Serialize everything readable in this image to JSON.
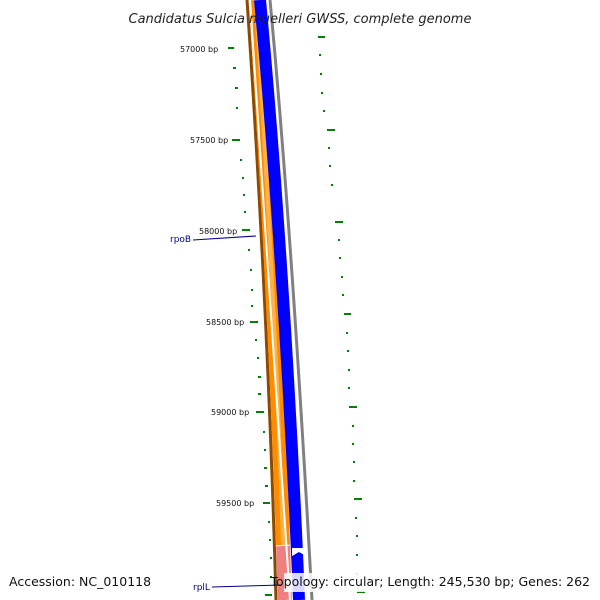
{
  "title": "Candidatus Sulcia muelleri GWSS, complete genome",
  "footer": {
    "accession": "Accession: NC_010118",
    "summary": "Topology: circular; Length: 245,530 bp; Genes: 262"
  },
  "ticks": [
    {
      "bp": 57000,
      "label": "57000 bp"
    },
    {
      "bp": 57500,
      "label": "57500 bp"
    },
    {
      "bp": 58000,
      "label": "58000 bp"
    },
    {
      "bp": 58500,
      "label": "58500 bp"
    },
    {
      "bp": 59000,
      "label": "59000 bp"
    },
    {
      "bp": 59500,
      "label": "59500 bp"
    }
  ],
  "genes": [
    {
      "name": "rpoB"
    },
    {
      "name": "rplL"
    }
  ],
  "colors": {
    "forward_cds": "#ff8c00",
    "forward_rrna": "#f08080",
    "reverse_cds": "#0000ff",
    "backbone": "#808080",
    "gc_skew": "#008000",
    "label": "#00008b"
  }
}
